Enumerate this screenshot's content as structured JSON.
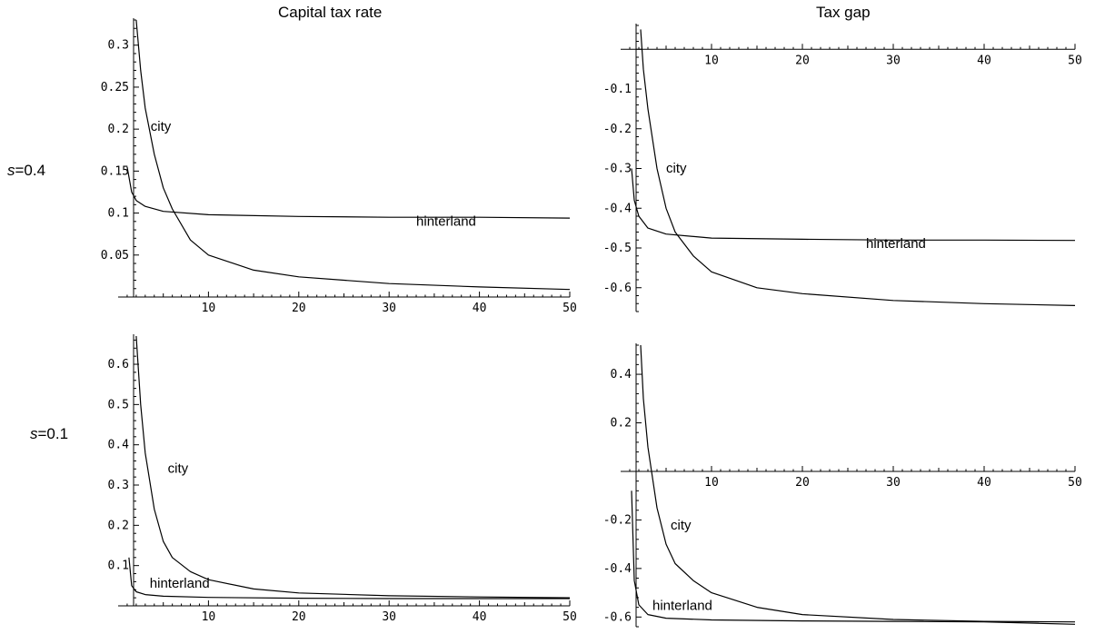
{
  "column_titles": [
    "Capital tax rate",
    "Tax gap"
  ],
  "row_labels": [
    {
      "symbol": "s",
      "value": "=0.4"
    },
    {
      "symbol": "s",
      "value": "=0.1"
    }
  ],
  "colors": {
    "line": "#000000",
    "background": "#ffffff"
  },
  "chart_data": [
    {
      "type": "line",
      "title": "",
      "xlabel": "",
      "ylabel": "",
      "xlim": [
        0,
        50
      ],
      "ylim": [
        0,
        0.33
      ],
      "x_axis_at_y": 0,
      "xticks": [
        10,
        20,
        30,
        40,
        50
      ],
      "yticks": [
        0.05,
        0.1,
        0.15,
        0.2,
        0.25,
        0.3
      ],
      "ytick_labels": [
        "0.05",
        "0.1",
        "0.15",
        "0.2",
        "0.25",
        "0.3"
      ],
      "grid": false,
      "series": [
        {
          "name": "city",
          "x": [
            2,
            2.5,
            3,
            4,
            5,
            6,
            8,
            10,
            15,
            20,
            30,
            40,
            50
          ],
          "y": [
            0.33,
            0.27,
            0.225,
            0.17,
            0.13,
            0.105,
            0.068,
            0.05,
            0.032,
            0.024,
            0.016,
            0.012,
            0.009
          ]
        },
        {
          "name": "hinterland",
          "x": [
            1,
            1.5,
            2,
            3,
            5,
            10,
            20,
            30,
            40,
            50
          ],
          "y": [
            0.155,
            0.125,
            0.115,
            0.108,
            0.102,
            0.098,
            0.096,
            0.095,
            0.095,
            0.094
          ]
        }
      ]
    },
    {
      "type": "line",
      "title": "",
      "xlabel": "",
      "ylabel": "",
      "xlim": [
        0,
        50
      ],
      "ylim": [
        -0.66,
        0.06
      ],
      "x_axis_at_y": 0,
      "xticks": [
        10,
        20,
        30,
        40,
        50
      ],
      "yticks": [
        -0.1,
        -0.2,
        -0.3,
        -0.4,
        -0.5,
        -0.6
      ],
      "ytick_labels": [
        "-0.1",
        "-0.2",
        "-0.3",
        "-0.4",
        "-0.5",
        "-0.6"
      ],
      "grid": false,
      "series": [
        {
          "name": "city",
          "x": [
            2.2,
            2.5,
            3,
            4,
            5,
            6,
            8,
            10,
            15,
            20,
            30,
            40,
            50
          ],
          "y": [
            0.05,
            -0.05,
            -0.15,
            -0.3,
            -0.4,
            -0.46,
            -0.52,
            -0.56,
            -0.6,
            -0.615,
            -0.632,
            -0.64,
            -0.645
          ]
        },
        {
          "name": "hinterland",
          "x": [
            1.2,
            1.5,
            2,
            3,
            5,
            10,
            20,
            30,
            40,
            50
          ],
          "y": [
            -0.3,
            -0.38,
            -0.42,
            -0.45,
            -0.465,
            -0.475,
            -0.478,
            -0.48,
            -0.48,
            -0.481
          ]
        }
      ]
    },
    {
      "type": "line",
      "title": "",
      "xlabel": "",
      "ylabel": "",
      "xlim": [
        0,
        50
      ],
      "ylim": [
        0,
        0.67
      ],
      "x_axis_at_y": 0,
      "xticks": [
        10,
        20,
        30,
        40,
        50
      ],
      "yticks": [
        0.1,
        0.2,
        0.3,
        0.4,
        0.5,
        0.6
      ],
      "ytick_labels": [
        "0.1",
        "0.2",
        "0.3",
        "0.4",
        "0.5",
        "0.6"
      ],
      "grid": false,
      "series": [
        {
          "name": "city",
          "x": [
            2,
            2.5,
            3,
            4,
            5,
            6,
            8,
            10,
            15,
            20,
            30,
            40,
            50
          ],
          "y": [
            0.67,
            0.5,
            0.38,
            0.24,
            0.16,
            0.12,
            0.085,
            0.065,
            0.042,
            0.032,
            0.025,
            0.022,
            0.02
          ]
        },
        {
          "name": "hinterland",
          "x": [
            1.2,
            1.5,
            2,
            3,
            5,
            10,
            20,
            30,
            40,
            50
          ],
          "y": [
            0.12,
            0.05,
            0.035,
            0.028,
            0.024,
            0.021,
            0.019,
            0.018,
            0.018,
            0.018
          ]
        }
      ]
    },
    {
      "type": "line",
      "title": "",
      "xlabel": "",
      "ylabel": "",
      "xlim": [
        0,
        50
      ],
      "ylim": [
        -0.64,
        0.52
      ],
      "x_axis_at_y": 0,
      "xticks": [
        10,
        20,
        30,
        40,
        50
      ],
      "yticks": [
        0.4,
        0.2,
        -0.2,
        -0.4,
        -0.6
      ],
      "ytick_labels": [
        "0.4",
        "0.2",
        "-0.2",
        "-0.4",
        "-0.6"
      ],
      "grid": false,
      "series": [
        {
          "name": "city",
          "x": [
            2.2,
            2.5,
            3,
            4,
            5,
            6,
            8,
            10,
            15,
            20,
            30,
            40,
            50
          ],
          "y": [
            0.52,
            0.3,
            0.1,
            -0.15,
            -0.3,
            -0.38,
            -0.45,
            -0.5,
            -0.56,
            -0.59,
            -0.61,
            -0.618,
            -0.62
          ]
        },
        {
          "name": "hinterland",
          "x": [
            1.2,
            1.5,
            2,
            3,
            5,
            10,
            20,
            30,
            40,
            50
          ],
          "y": [
            -0.08,
            -0.45,
            -0.55,
            -0.59,
            -0.605,
            -0.612,
            -0.616,
            -0.618,
            -0.62,
            -0.63
          ]
        }
      ]
    }
  ]
}
